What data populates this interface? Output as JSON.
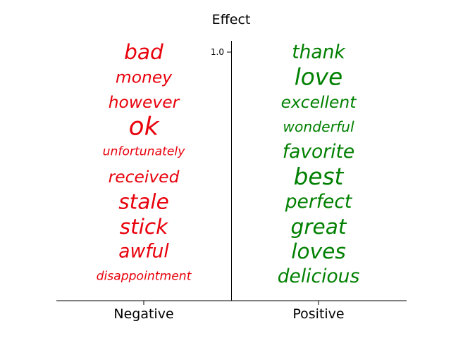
{
  "chart_data": {
    "type": "text",
    "title": "Effect",
    "categories": [
      "Negative",
      "Positive"
    ],
    "y_tick_labels": [
      "1.0"
    ],
    "series": [
      {
        "name": "Negative",
        "color": "#e8000b",
        "words": [
          {
            "text": "bad",
            "weight": 3
          },
          {
            "text": "money",
            "weight": 2
          },
          {
            "text": "however",
            "weight": 2
          },
          {
            "text": "ok",
            "weight": 4
          },
          {
            "text": "unfortunately",
            "weight": 1
          },
          {
            "text": "received",
            "weight": 2
          },
          {
            "text": "stale",
            "weight": 3
          },
          {
            "text": "stick",
            "weight": 3
          },
          {
            "text": "awful",
            "weight": 2.5
          },
          {
            "text": "disappointment",
            "weight": 1
          }
        ]
      },
      {
        "name": "Positive",
        "color": "#008000",
        "words": [
          {
            "text": "thank",
            "weight": 2.5
          },
          {
            "text": "love",
            "weight": 3.5
          },
          {
            "text": "excellent",
            "weight": 2
          },
          {
            "text": "wonderful",
            "weight": 1.5
          },
          {
            "text": "favorite",
            "weight": 2.5
          },
          {
            "text": "best",
            "weight": 3.5
          },
          {
            "text": "perfect",
            "weight": 2.5
          },
          {
            "text": "great",
            "weight": 3
          },
          {
            "text": "loves",
            "weight": 3
          },
          {
            "text": "delicious",
            "weight": 2.5
          }
        ]
      }
    ]
  }
}
